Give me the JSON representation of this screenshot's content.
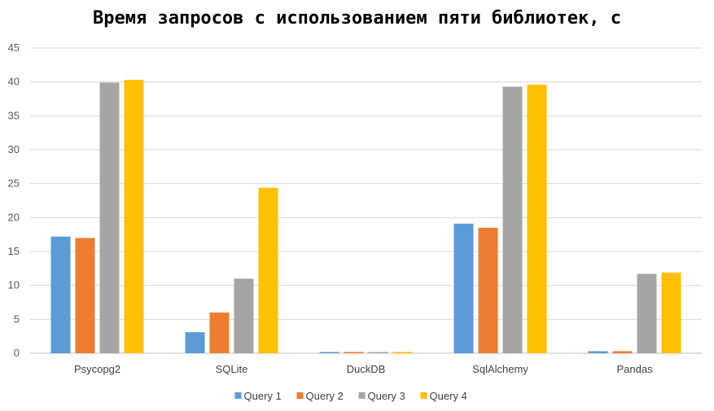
{
  "chart_data": {
    "type": "bar",
    "title": "Время запросов с использованием пяти библиотек, с",
    "xlabel": "",
    "ylabel": "",
    "ylim": [
      0,
      45
    ],
    "yticks": [
      0,
      5,
      10,
      15,
      20,
      25,
      30,
      35,
      40,
      45
    ],
    "grid": true,
    "legend": "bottom",
    "categories": [
      "Psycopg2",
      "SQLite",
      "DuckDB",
      "SqlAlchemy",
      "Pandas"
    ],
    "series": [
      {
        "name": "Query 1",
        "color": "#5B9BD5",
        "values": [
          17.2,
          3.1,
          0.1,
          19.1,
          0.3
        ]
      },
      {
        "name": "Query 2",
        "color": "#ED7D31",
        "values": [
          17.0,
          6.0,
          0.1,
          18.5,
          0.3
        ]
      },
      {
        "name": "Query 3",
        "color": "#A5A5A5",
        "values": [
          39.9,
          11.0,
          0.1,
          39.3,
          11.7
        ]
      },
      {
        "name": "Query 4",
        "color": "#FFC000",
        "values": [
          40.3,
          24.4,
          0.1,
          39.6,
          11.9
        ]
      }
    ]
  }
}
